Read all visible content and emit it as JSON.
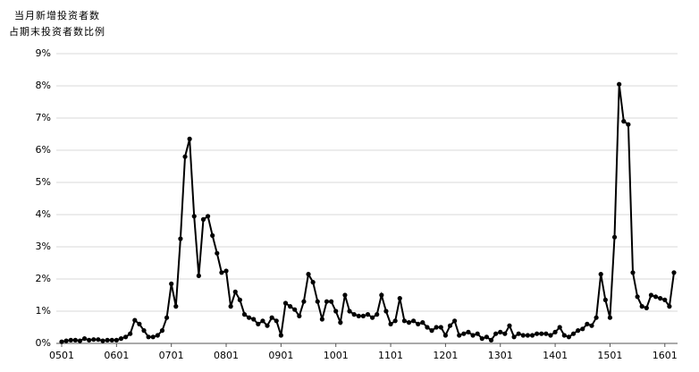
{
  "chart_data": {
    "type": "line",
    "title": "当月新增投资者数",
    "subtitle": "占期末投资者数比例",
    "categories": [
      "0501",
      null,
      null,
      null,
      null,
      null,
      null,
      null,
      null,
      null,
      null,
      null,
      "0601",
      null,
      null,
      null,
      null,
      null,
      null,
      null,
      null,
      null,
      null,
      null,
      "0701",
      null,
      null,
      null,
      null,
      null,
      null,
      null,
      null,
      null,
      null,
      null,
      "0801",
      null,
      null,
      null,
      null,
      null,
      null,
      null,
      null,
      null,
      null,
      null,
      "0901",
      null,
      null,
      null,
      null,
      null,
      null,
      null,
      null,
      null,
      null,
      null,
      "1001",
      null,
      null,
      null,
      null,
      null,
      null,
      null,
      null,
      null,
      null,
      null,
      "1101",
      null,
      null,
      null,
      null,
      null,
      null,
      null,
      null,
      null,
      null,
      null,
      "1201",
      null,
      null,
      null,
      null,
      null,
      null,
      null,
      null,
      null,
      null,
      null,
      "1301",
      null,
      null,
      null,
      null,
      null,
      null,
      null,
      null,
      null,
      null,
      null,
      "1401",
      null,
      null,
      null,
      null,
      null,
      null,
      null,
      null,
      null,
      null,
      null,
      "1501",
      null,
      null,
      null,
      null,
      null,
      null,
      null,
      null,
      null,
      null,
      null,
      "1601",
      null,
      null
    ],
    "values": [
      0.05,
      0.08,
      0.1,
      0.1,
      0.08,
      0.15,
      0.1,
      0.12,
      0.12,
      0.08,
      0.1,
      0.1,
      0.1,
      0.15,
      0.2,
      0.3,
      0.72,
      0.6,
      0.4,
      0.2,
      0.2,
      0.25,
      0.4,
      0.8,
      1.85,
      1.15,
      3.25,
      5.8,
      6.35,
      3.95,
      2.1,
      3.85,
      3.95,
      3.35,
      2.8,
      2.2,
      2.25,
      1.15,
      1.6,
      1.35,
      0.9,
      0.8,
      0.75,
      0.6,
      0.7,
      0.55,
      0.8,
      0.7,
      0.25,
      1.25,
      1.15,
      1.05,
      0.85,
      1.3,
      2.15,
      1.9,
      1.3,
      0.75,
      1.3,
      1.3,
      1.0,
      0.65,
      1.5,
      1.0,
      0.9,
      0.85,
      0.85,
      0.9,
      0.8,
      0.9,
      1.5,
      1.0,
      0.6,
      0.7,
      1.4,
      0.7,
      0.65,
      0.7,
      0.6,
      0.65,
      0.5,
      0.4,
      0.5,
      0.5,
      0.25,
      0.55,
      0.7,
      0.25,
      0.3,
      0.35,
      0.25,
      0.3,
      0.15,
      0.2,
      0.1,
      0.3,
      0.35,
      0.3,
      0.55,
      0.2,
      0.3,
      0.25,
      0.25,
      0.25,
      0.3,
      0.3,
      0.3,
      0.25,
      0.35,
      0.5,
      0.25,
      0.2,
      0.3,
      0.4,
      0.45,
      0.6,
      0.55,
      0.8,
      2.15,
      1.35,
      0.8,
      3.3,
      8.05,
      6.9,
      6.8,
      2.2,
      1.45,
      1.15,
      1.1,
      1.5,
      1.45,
      1.4,
      1.35,
      1.15,
      2.2
    ],
    "color": "#000000",
    "ylim": [
      0,
      9
    ],
    "yticks": [
      {
        "value": 0,
        "label": "0%"
      },
      {
        "value": 1,
        "label": "1%"
      },
      {
        "value": 2,
        "label": "2%"
      },
      {
        "value": 3,
        "label": "3%"
      },
      {
        "value": 4,
        "label": "4%"
      },
      {
        "value": 5,
        "label": "5%"
      },
      {
        "value": 6,
        "label": "6%"
      },
      {
        "value": 7,
        "label": "7%"
      },
      {
        "value": 8,
        "label": "8%"
      },
      {
        "value": 9,
        "label": "9%"
      }
    ],
    "grid": true
  }
}
